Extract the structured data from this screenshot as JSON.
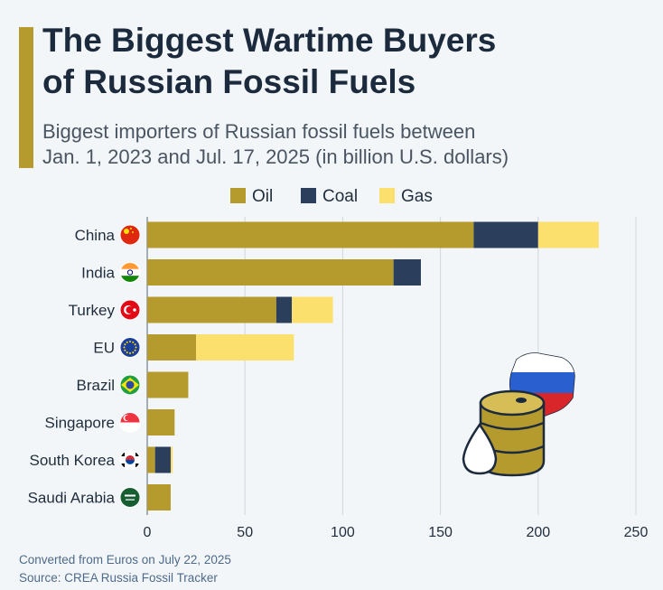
{
  "header": {
    "title_line1": "The Biggest Wartime Buyers",
    "title_line2": "of Russian Fossil Fuels",
    "subtitle_line1": "Biggest importers of Russian fossil fuels between",
    "subtitle_line2": "Jan. 1, 2023 and Jul. 17, 2025 (in billion U.S. dollars)"
  },
  "footer": {
    "note": "Converted from Euros on July 22, 2025",
    "source": "Source: CREA Russia Fossil Tracker"
  },
  "colors": {
    "oil": "#b59a2e",
    "coal": "#2b3f5c",
    "gas": "#fbe06d",
    "grid": "#cfd6dd",
    "accent": "#b59a2e"
  },
  "illustration": {
    "description_icons": [
      "oil-barrel-icon",
      "oil-drop-icon",
      "russian-flag-map-icon"
    ]
  },
  "chart_data": {
    "type": "bar",
    "orientation": "horizontal",
    "stacked": true,
    "categories": [
      "China",
      "India",
      "Turkey",
      "EU",
      "Brazil",
      "Singapore",
      "South Korea",
      "Saudi Arabia"
    ],
    "category_icons": [
      "china-flag-icon",
      "india-flag-icon",
      "turkey-flag-icon",
      "eu-flag-icon",
      "brazil-flag-icon",
      "singapore-flag-icon",
      "south-korea-flag-icon",
      "saudi-arabia-flag-icon"
    ],
    "series": [
      {
        "name": "Oil",
        "values": [
          167,
          126,
          66,
          25,
          21,
          14,
          4,
          12
        ]
      },
      {
        "name": "Coal",
        "values": [
          33,
          14,
          8,
          0,
          0,
          0,
          8,
          0
        ]
      },
      {
        "name": "Gas",
        "values": [
          31,
          0,
          21,
          50,
          0,
          0,
          1,
          0
        ]
      }
    ],
    "xlim": [
      0,
      250
    ],
    "xticks": [
      0,
      50,
      100,
      150,
      200,
      250
    ],
    "grid": true,
    "legend_position": "top-center"
  }
}
